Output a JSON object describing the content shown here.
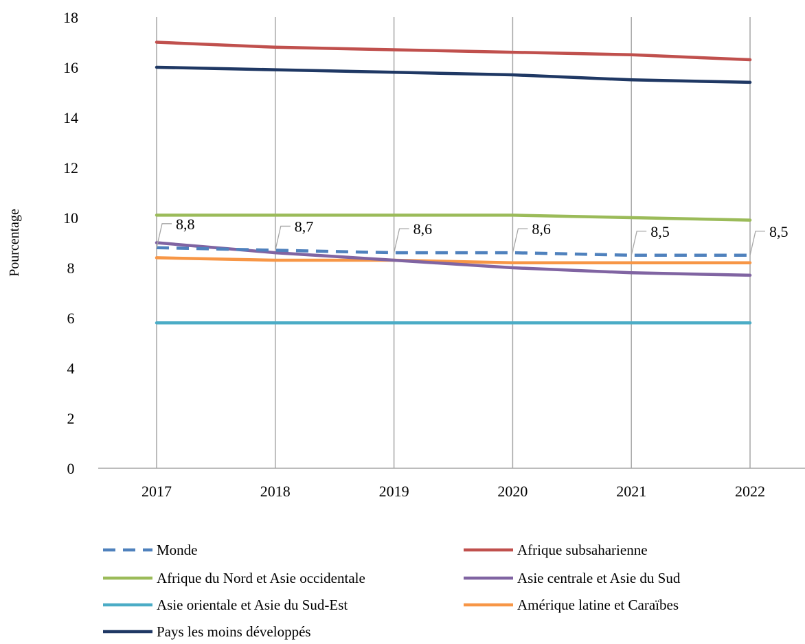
{
  "chart_data": {
    "type": "line",
    "title": "",
    "xlabel": "",
    "ylabel": "Pourcentage",
    "ylim": [
      0,
      18
    ],
    "yticks": [
      0,
      2,
      4,
      6,
      8,
      10,
      12,
      14,
      16,
      18
    ],
    "x": [
      "2017",
      "2018",
      "2019",
      "2020",
      "2021",
      "2022"
    ],
    "grid": "vertical lines at each year",
    "legend_position": "bottom",
    "series": [
      {
        "name": "Monde",
        "values": [
          8.8,
          8.7,
          8.6,
          8.6,
          8.5,
          8.5
        ],
        "color": "#4F81BD",
        "dashed": true,
        "labels": [
          "8,8",
          "8,7",
          "8,6",
          "8,6",
          "8,5",
          "8,5"
        ]
      },
      {
        "name": "Afrique subsaharienne",
        "values": [
          17.0,
          16.8,
          16.7,
          16.6,
          16.5,
          16.3
        ],
        "color": "#C0504D"
      },
      {
        "name": "Afrique du Nord et Asie occidentale",
        "values": [
          10.1,
          10.1,
          10.1,
          10.1,
          10.0,
          9.9
        ],
        "color": "#9BBB59"
      },
      {
        "name": "Asie centrale et Asie du Sud",
        "values": [
          9.0,
          8.6,
          8.3,
          8.0,
          7.8,
          7.7
        ],
        "color": "#8064A2"
      },
      {
        "name": "Asie orientale et Asie du Sud-Est",
        "values": [
          5.8,
          5.8,
          5.8,
          5.8,
          5.8,
          5.8
        ],
        "color": "#4BACC6"
      },
      {
        "name": "Amérique latine et Caraïbes",
        "values": [
          8.4,
          8.3,
          8.3,
          8.2,
          8.2,
          8.2
        ],
        "color": "#F79646"
      },
      {
        "name": "Pays les moins développés",
        "values": [
          16.0,
          15.9,
          15.8,
          15.7,
          15.5,
          15.4
        ],
        "color": "#1F3864"
      }
    ]
  }
}
